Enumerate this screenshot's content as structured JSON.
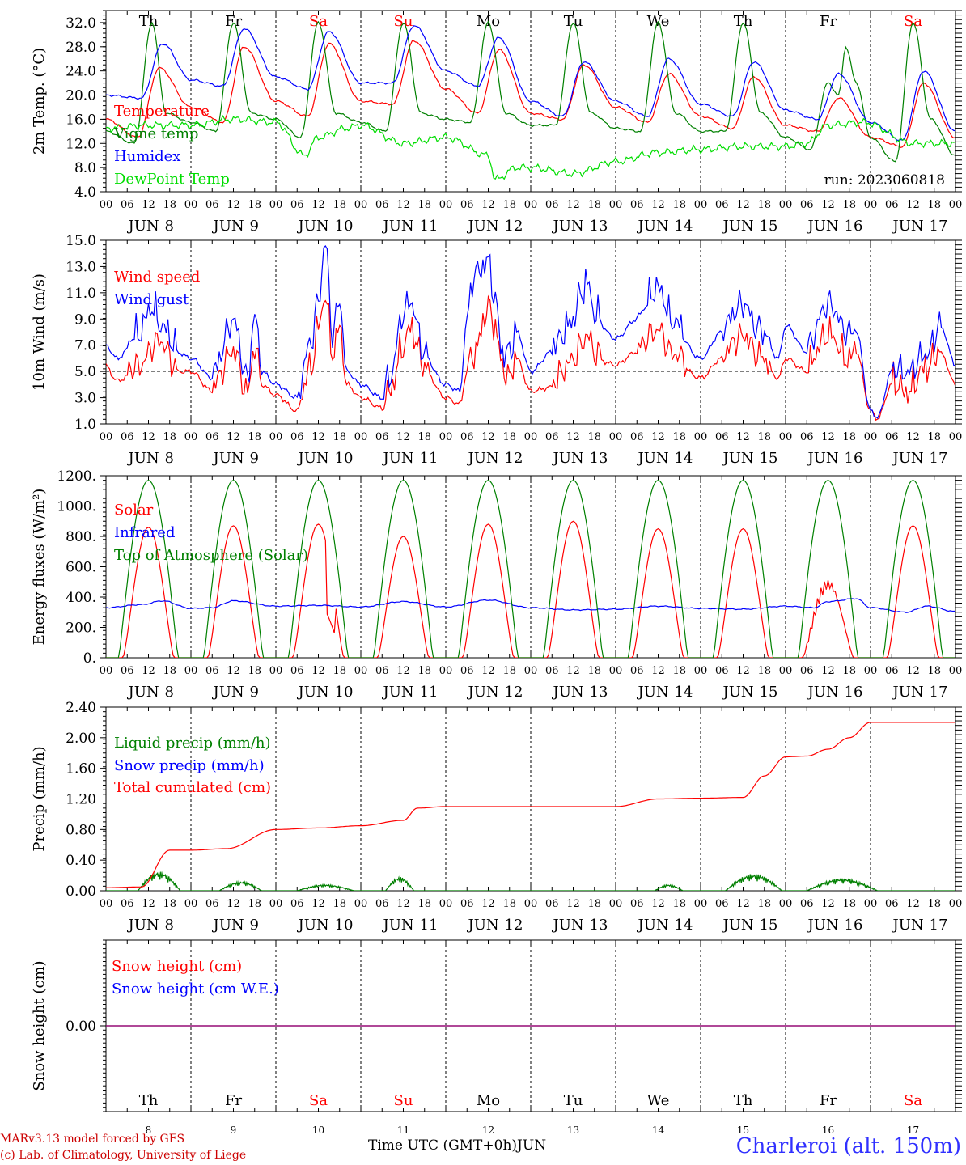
{
  "footer": {
    "model_line": "MARv3.13 model forced by GFS",
    "copyright_line": "(c) Lab. of Climatology, University of Liege",
    "time_label": "Time UTC (GMT+0h)",
    "month_label": "JUN",
    "location": "Charleroi (alt. 150m)"
  },
  "run_label": "run: 2023060818",
  "colors": {
    "red": "#ff0000",
    "dark_green": "#008000",
    "blue": "#0000ff",
    "light_green": "#00dd00",
    "purple": "#800080",
    "weekend": "#ff0000",
    "weekday": "#000000"
  },
  "days": [
    {
      "date": "8",
      "dow": "Th",
      "weekend": false
    },
    {
      "date": "9",
      "dow": "Fr",
      "weekend": false
    },
    {
      "date": "10",
      "dow": "Sa",
      "weekend": true
    },
    {
      "date": "11",
      "dow": "Su",
      "weekend": true
    },
    {
      "date": "12",
      "dow": "Mo",
      "weekend": false
    },
    {
      "date": "13",
      "dow": "Tu",
      "weekend": false
    },
    {
      "date": "14",
      "dow": "We",
      "weekend": false
    },
    {
      "date": "15",
      "dow": "Th",
      "weekend": false
    },
    {
      "date": "16",
      "dow": "Fr",
      "weekend": false
    },
    {
      "date": "17",
      "dow": "Sa",
      "weekend": true
    }
  ],
  "hour_ticks": [
    "00",
    "06",
    "12",
    "18"
  ],
  "chart_data": [
    {
      "id": "temp",
      "type": "line",
      "ylabel": "2m Temp. (°C)",
      "ylim": [
        4,
        34
      ],
      "yticks": [
        "4.0",
        "8.0",
        "12.0",
        "16.0",
        "20.0",
        "24.0",
        "28.0",
        "32.0"
      ],
      "show_dow": true,
      "series": [
        {
          "name": "Temperature",
          "color": "#ff0000",
          "x": [
            0,
            9,
            15,
            24,
            33,
            39,
            48,
            57,
            63,
            72,
            81,
            87,
            96,
            105,
            111,
            120,
            129,
            135,
            144,
            153,
            159,
            168,
            177,
            183,
            192,
            201,
            207,
            216,
            225,
            231,
            240
          ],
          "values": [
            16,
            13,
            24.5,
            18,
            15.5,
            28,
            19,
            16.5,
            28.5,
            19,
            18.5,
            29,
            21,
            17,
            27.5,
            17,
            16,
            25,
            18,
            15.5,
            23.5,
            16.5,
            14.5,
            23,
            15,
            14,
            19.5,
            13,
            11.5,
            22,
            13
          ]
        },
        {
          "name": "Vigne temp",
          "color": "#008000",
          "x": [
            0,
            8,
            13,
            17,
            24,
            31,
            36,
            41,
            48,
            55,
            60,
            65,
            72,
            79,
            84,
            89,
            96,
            103,
            108,
            113,
            120,
            127,
            132,
            137,
            144,
            151,
            156,
            161,
            168,
            175,
            180,
            185,
            192,
            199,
            204,
            207,
            209,
            212,
            216,
            223,
            228,
            233,
            240
          ],
          "values": [
            14,
            12,
            32,
            17,
            15.5,
            14,
            32,
            17,
            16,
            13,
            32,
            17,
            15.5,
            14,
            32,
            17,
            16,
            15.5,
            32,
            17,
            15,
            15,
            32,
            17,
            14.5,
            14,
            32,
            17,
            14,
            14,
            32,
            17,
            13,
            11,
            22,
            20,
            28,
            22,
            13,
            9,
            32,
            16,
            10
          ]
        },
        {
          "name": "Humidex",
          "color": "#0000ff",
          "x": [
            0,
            10,
            16,
            24,
            33,
            39,
            48,
            57,
            63,
            72,
            81,
            87,
            96,
            105,
            111,
            120,
            129,
            135,
            144,
            153,
            159,
            168,
            177,
            183,
            192,
            201,
            207,
            216,
            225,
            231,
            240
          ],
          "values": [
            20,
            19.5,
            28.5,
            22.5,
            21.5,
            31,
            23,
            21,
            30.5,
            22,
            22,
            31.5,
            24,
            21.5,
            29.5,
            19,
            16.5,
            25.5,
            19,
            16.5,
            26,
            18.5,
            16.5,
            25.5,
            17.5,
            16,
            23.5,
            15.5,
            12.5,
            24,
            14
          ]
        },
        {
          "name": "DewPoint Temp",
          "color": "#00dd00",
          "x": [
            0,
            12,
            24,
            36,
            48,
            56,
            60,
            68,
            72,
            84,
            96,
            108,
            110,
            116,
            120,
            132,
            144,
            156,
            168,
            180,
            192,
            198,
            204,
            214,
            228,
            240
          ],
          "values": [
            14.5,
            15,
            15,
            16,
            15.5,
            10,
            13,
            14.5,
            15,
            12,
            13,
            10,
            6,
            8,
            8,
            7,
            9,
            10.5,
            11,
            11.5,
            11.5,
            12,
            15,
            15.5,
            12,
            12
          ]
        }
      ]
    },
    {
      "id": "wind",
      "type": "line",
      "ylabel": "10m Wind (m/s)",
      "ylim": [
        1,
        15
      ],
      "yticks": [
        "1.0",
        "3.0",
        "5.0",
        "7.0",
        "9.0",
        "11.0",
        "13.0",
        "15.0"
      ],
      "reference_line": 5,
      "show_dow": false,
      "series": [
        {
          "name": "Wind speed",
          "color": "#ff0000",
          "x": [
            0,
            3,
            9,
            15,
            20,
            24,
            30,
            36,
            40,
            42,
            44,
            48,
            54,
            58,
            60,
            62,
            64,
            66,
            68,
            72,
            78,
            80,
            84,
            86,
            90,
            96,
            100,
            102,
            104,
            108,
            110,
            112,
            114,
            116,
            120,
            126,
            132,
            134,
            136,
            138,
            144,
            150,
            156,
            160,
            168,
            174,
            180,
            184,
            186,
            190,
            192,
            198,
            204,
            210,
            212,
            216,
            218,
            222,
            226,
            232,
            236,
            240
          ],
          "values": [
            5.4,
            4.3,
            5,
            7,
            5,
            5,
            3.5,
            6.2,
            3,
            6.5,
            4,
            3.2,
            2,
            5,
            8,
            10.5,
            6,
            8,
            4,
            3,
            2.2,
            3,
            6.5,
            8,
            5,
            3,
            2.5,
            5,
            6,
            9.5,
            8,
            5,
            4,
            6,
            3.5,
            3.8,
            5.5,
            6.5,
            7.5,
            6,
            5.5,
            6.5,
            7.8,
            6,
            4.5,
            6,
            7.4,
            6,
            5.5,
            4.5,
            6,
            5,
            7.5,
            5.5,
            6.5,
            2,
            1.4,
            4,
            3,
            5,
            6.3,
            4
          ]
        },
        {
          "name": "Wind gust",
          "color": "#0000ff",
          "x": [
            0,
            3,
            9,
            13,
            16,
            20,
            24,
            30,
            36,
            40,
            42,
            44,
            48,
            54,
            58,
            60,
            62,
            64,
            66,
            68,
            72,
            78,
            80,
            84,
            86,
            90,
            96,
            100,
            102,
            104,
            108,
            110,
            112,
            114,
            116,
            120,
            126,
            132,
            134,
            136,
            138,
            144,
            150,
            156,
            160,
            168,
            174,
            180,
            184,
            186,
            190,
            192,
            198,
            204,
            210,
            212,
            216,
            218,
            222,
            226,
            232,
            236,
            240
          ],
          "values": [
            7,
            6,
            7.5,
            9.5,
            8,
            6.5,
            6,
            4.5,
            8.5,
            4,
            9,
            5,
            4,
            3,
            7,
            10,
            14.5,
            7.5,
            10,
            5,
            4,
            3,
            4,
            9,
            10,
            6,
            4,
            3.5,
            9,
            12,
            13,
            10,
            6,
            6,
            8,
            5,
            6.5,
            8.5,
            10.5,
            11.5,
            9,
            7.5,
            9,
            11,
            8.5,
            6,
            8,
            9.8,
            8,
            7.5,
            6,
            8.5,
            6.5,
            9.8,
            7.5,
            8,
            2,
            1.5,
            5,
            4.5,
            6,
            8.3,
            5.5
          ]
        }
      ]
    },
    {
      "id": "energy",
      "type": "line",
      "ylabel": "Energy fluxes (W/m²)",
      "ylim": [
        0,
        1200
      ],
      "yticks": [
        "0.",
        "200.",
        "400.",
        "600.",
        "800.",
        "1000.",
        "1200."
      ],
      "show_dow": false,
      "series": [
        {
          "name": "Solar",
          "color": "#ff0000",
          "day_peak": [
            860,
            870,
            880,
            800,
            880,
            900,
            850,
            850,
            560,
            870
          ],
          "peak_hour": 12
        },
        {
          "name": "Infrared",
          "color": "#0000ff",
          "x": [
            0,
            10,
            16,
            24,
            30,
            36,
            48,
            60,
            72,
            84,
            96,
            108,
            120,
            132,
            144,
            156,
            168,
            180,
            192,
            200,
            204,
            212,
            216,
            226,
            232,
            240
          ],
          "values": [
            330,
            350,
            375,
            325,
            330,
            375,
            340,
            345,
            335,
            370,
            335,
            380,
            330,
            315,
            320,
            340,
            325,
            320,
            340,
            330,
            370,
            390,
            330,
            300,
            340,
            305
          ]
        },
        {
          "name": "Top of Atmosphere (Solar)",
          "color": "#008000",
          "day_peak": [
            1170,
            1170,
            1170,
            1170,
            1170,
            1170,
            1170,
            1170,
            1170,
            1170
          ],
          "peak_hour": 12
        }
      ]
    },
    {
      "id": "precip",
      "type": "line",
      "ylabel": "Precip (mm/h)",
      "ylim": [
        0,
        2.4
      ],
      "yticks": [
        "0.00",
        "0.40",
        "0.80",
        "1.20",
        "1.60",
        "2.00",
        "2.40"
      ],
      "show_dow": false,
      "series": [
        {
          "name": "Liquid precip (mm/h)",
          "color": "#008000",
          "bursts": [
            {
              "center": 15,
              "halfwidth": 6,
              "peak": 0.25
            },
            {
              "center": 38,
              "halfwidth": 6,
              "peak": 0.12
            },
            {
              "center": 62,
              "halfwidth": 8,
              "peak": 0.08
            },
            {
              "center": 83,
              "halfwidth": 4,
              "peak": 0.18
            },
            {
              "center": 159,
              "halfwidth": 4,
              "peak": 0.08
            },
            {
              "center": 183,
              "halfwidth": 8,
              "peak": 0.22
            },
            {
              "center": 208,
              "halfwidth": 10,
              "peak": 0.16
            }
          ]
        },
        {
          "name": "Snow precip (mm/h)",
          "color": "#0000ff",
          "values": []
        },
        {
          "name": "Total cumulated (cm)",
          "color": "#ff0000",
          "x": [
            0,
            10,
            18,
            24,
            34,
            48,
            60,
            72,
            84,
            88,
            96,
            120,
            144,
            156,
            168,
            180,
            186,
            192,
            198,
            204,
            210,
            216,
            240
          ],
          "values": [
            0.04,
            0.05,
            0.53,
            0.53,
            0.55,
            0.8,
            0.82,
            0.85,
            0.92,
            1.08,
            1.1,
            1.1,
            1.1,
            1.2,
            1.21,
            1.22,
            1.5,
            1.75,
            1.76,
            1.85,
            2.0,
            2.2,
            2.2
          ]
        }
      ]
    },
    {
      "id": "snow",
      "type": "line",
      "ylabel": "Snow height (cm)",
      "ylim": [
        -1,
        1
      ],
      "yticks": [
        "0.00"
      ],
      "show_dow": true,
      "series": [
        {
          "name": "Snow height (cm)",
          "color": "#ff0000",
          "x": [
            0,
            240
          ],
          "values": [
            0,
            0
          ]
        },
        {
          "name": "Snow height (cm W.E.)",
          "color": "#0000ff",
          "x": [
            0,
            240
          ],
          "values": [
            0,
            0
          ]
        }
      ]
    }
  ]
}
